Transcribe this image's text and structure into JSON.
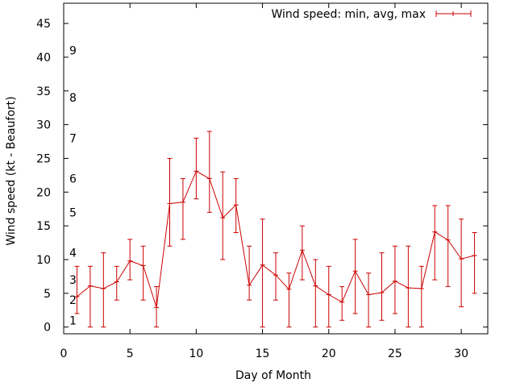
{
  "chart_data": {
    "type": "line",
    "title": "",
    "xlabel": "Day of Month",
    "ylabel": "Wind speed (kt - Beaufort)",
    "xlim": [
      0,
      32
    ],
    "ylim": [
      -1,
      48
    ],
    "x_ticks": [
      0,
      5,
      10,
      15,
      20,
      25,
      30
    ],
    "y_ticks": [
      0,
      5,
      10,
      15,
      20,
      25,
      30,
      35,
      40,
      45
    ],
    "legend": {
      "label": "Wind speed: min, avg, max",
      "position": "top-right"
    },
    "color": "#cc0000",
    "beaufort_scale": [
      {
        "label": "1",
        "value": 1
      },
      {
        "label": "2",
        "value": 4
      },
      {
        "label": "3",
        "value": 7
      },
      {
        "label": "4",
        "value": 11
      },
      {
        "label": "5",
        "value": 17
      },
      {
        "label": "6",
        "value": 22
      },
      {
        "label": "7",
        "value": 28
      },
      {
        "label": "8",
        "value": 34
      },
      {
        "label": "9",
        "value": 41
      }
    ],
    "series": [
      {
        "name": "Wind speed: min, avg, max",
        "x": [
          1,
          2,
          3,
          4,
          5,
          6,
          7,
          8,
          9,
          10,
          11,
          12,
          13,
          14,
          15,
          16,
          17,
          18,
          19,
          20,
          21,
          22,
          23,
          24,
          25,
          26,
          27,
          28,
          29,
          30,
          31
        ],
        "avg": [
          4.5,
          6.1,
          5.7,
          6.7,
          9.8,
          9.1,
          2.9,
          18.3,
          18.5,
          23.1,
          22.0,
          16.2,
          18.1,
          6.2,
          9.2,
          7.7,
          5.6,
          11.4,
          6.1,
          4.8,
          3.7,
          8.3,
          4.8,
          5.1,
          6.8,
          5.8,
          5.7,
          14.1,
          12.9,
          10.1,
          10.6
        ],
        "min": [
          2,
          0,
          0,
          4,
          7,
          4,
          0,
          12,
          13,
          19,
          17,
          10,
          14,
          4,
          0,
          4,
          0,
          7,
          0,
          0,
          1,
          2,
          0,
          1,
          2,
          0,
          0,
          7,
          6,
          3,
          5
        ],
        "max": [
          9,
          9,
          11,
          9,
          13,
          12,
          6,
          25,
          22,
          28,
          29,
          23,
          22,
          12,
          16,
          11,
          8,
          15,
          10,
          9,
          6,
          13,
          8,
          11,
          12,
          12,
          9,
          18,
          18,
          16,
          14
        ]
      }
    ]
  }
}
